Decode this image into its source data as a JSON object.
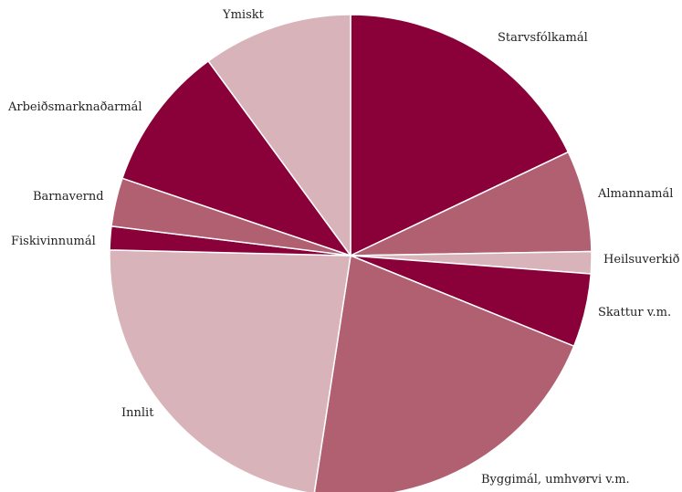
{
  "chart_data": {
    "type": "pie",
    "title": "",
    "start_angle_deg": 0,
    "direction": "clockwise",
    "legend": "none",
    "slices": [
      {
        "label": "Starvsfólkamál",
        "value": 18.2,
        "color": "#8a0038"
      },
      {
        "label": "Almannamál",
        "value": 6.9,
        "color": "#b06070"
      },
      {
        "label": "Heilsuverkið",
        "value": 1.5,
        "color": "#d8b4ba"
      },
      {
        "label": "Skattur v.m.",
        "value": 5.0,
        "color": "#8a0038"
      },
      {
        "label": "Byggimál, umhvørvi v.m.",
        "value": 21.6,
        "color": "#b06070"
      },
      {
        "label": "Innlit",
        "value": 23.3,
        "color": "#d8b4ba"
      },
      {
        "label": "Fiskivinnumál",
        "value": 1.6,
        "color": "#8a0038"
      },
      {
        "label": "Barnavernd",
        "value": 3.3,
        "color": "#b06070"
      },
      {
        "label": "Arbeiðsmarknaðarmál",
        "value": 9.9,
        "color": "#8a0038"
      },
      {
        "label": "Ymiskt",
        "value": 10.2,
        "color": "#d8b4ba"
      }
    ]
  }
}
